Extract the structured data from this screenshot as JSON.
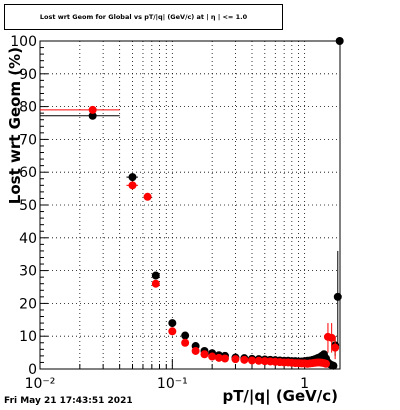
{
  "footer": {
    "timestamp": "Fri May 21 17:43:51 2021"
  },
  "chart_data": {
    "type": "scatter",
    "title": "Lost wrt Geom for Global vs pT/|q| (GeV/c) at |  η  | <= 1.0",
    "xlabel": "pT/|q| (GeV/c)",
    "ylabel": "Lost  wrt  Geom (%)",
    "xscale": "log",
    "xlim": [
      0.01,
      1.85
    ],
    "ylim": [
      0,
      100
    ],
    "x_ticks": [
      {
        "value": 0.01,
        "label": "10⁻²"
      },
      {
        "value": 0.1,
        "label": "10⁻¹"
      },
      {
        "value": 1,
        "label": "1"
      }
    ],
    "y_ticks": [
      0,
      10,
      20,
      30,
      40,
      50,
      60,
      70,
      80,
      90,
      100
    ],
    "grid": true,
    "series": [
      {
        "color": "#000000",
        "points": [
          {
            "x": 0.025,
            "y": 77.2,
            "xlo": 0.0,
            "xhi": 0.04
          },
          {
            "x": 0.05,
            "y": 58.5,
            "xlo": 0.045,
            "xhi": 0.055
          },
          {
            "x": 0.075,
            "y": 28.5
          },
          {
            "x": 0.1,
            "y": 14.0
          },
          {
            "x": 0.125,
            "y": 10.2
          },
          {
            "x": 0.15,
            "y": 7.0
          },
          {
            "x": 0.175,
            "y": 5.5
          },
          {
            "x": 0.2,
            "y": 4.8
          },
          {
            "x": 0.225,
            "y": 4.2
          },
          {
            "x": 0.25,
            "y": 4.0
          },
          {
            "x": 0.3,
            "y": 3.5
          },
          {
            "x": 0.35,
            "y": 3.3
          },
          {
            "x": 0.4,
            "y": 3.1
          },
          {
            "x": 0.45,
            "y": 3.0
          },
          {
            "x": 0.5,
            "y": 2.9
          },
          {
            "x": 0.55,
            "y": 2.8
          },
          {
            "x": 0.6,
            "y": 2.7
          },
          {
            "x": 0.65,
            "y": 2.6
          },
          {
            "x": 0.7,
            "y": 2.5
          },
          {
            "x": 0.75,
            "y": 2.5
          },
          {
            "x": 0.8,
            "y": 2.4
          },
          {
            "x": 0.85,
            "y": 2.4
          },
          {
            "x": 0.9,
            "y": 2.3
          },
          {
            "x": 0.95,
            "y": 2.3
          },
          {
            "x": 1.0,
            "y": 2.4
          },
          {
            "x": 1.05,
            "y": 2.5
          },
          {
            "x": 1.1,
            "y": 2.6
          },
          {
            "x": 1.15,
            "y": 2.8
          },
          {
            "x": 1.2,
            "y": 3.0
          },
          {
            "x": 1.25,
            "y": 3.3
          },
          {
            "x": 1.3,
            "y": 3.6
          },
          {
            "x": 1.35,
            "y": 4.0
          },
          {
            "x": 1.4,
            "y": 4.5
          },
          {
            "x": 1.45,
            "y": 3.2
          },
          {
            "x": 1.5,
            "y": 2.0
          },
          {
            "x": 1.55,
            "y": 1.5
          },
          {
            "x": 1.6,
            "y": 1.2
          },
          {
            "x": 1.65,
            "y": 1.0
          },
          {
            "x": 1.7,
            "y": 7.2,
            "ylo": 4.0,
            "yhi": 10.0
          },
          {
            "x": 1.78,
            "y": 22.0,
            "ylo": 8.0,
            "yhi": 36.0
          },
          {
            "x": 1.84,
            "y": 100.0
          }
        ]
      },
      {
        "color": "#ff0000",
        "points": [
          {
            "x": 0.025,
            "y": 79.0,
            "xlo": 0.0,
            "xhi": 0.04
          },
          {
            "x": 0.05,
            "y": 56.0,
            "xlo": 0.045,
            "xhi": 0.055
          },
          {
            "x": 0.065,
            "y": 52.5
          },
          {
            "x": 0.075,
            "y": 26.0
          },
          {
            "x": 0.1,
            "y": 11.5
          },
          {
            "x": 0.125,
            "y": 8.0
          },
          {
            "x": 0.15,
            "y": 5.5
          },
          {
            "x": 0.175,
            "y": 4.5
          },
          {
            "x": 0.2,
            "y": 3.8
          },
          {
            "x": 0.225,
            "y": 3.4
          },
          {
            "x": 0.25,
            "y": 3.2
          },
          {
            "x": 0.3,
            "y": 3.0
          },
          {
            "x": 0.35,
            "y": 2.8
          },
          {
            "x": 0.4,
            "y": 2.6
          },
          {
            "x": 0.45,
            "y": 2.5
          },
          {
            "x": 0.5,
            "y": 2.4
          },
          {
            "x": 0.55,
            "y": 2.3
          },
          {
            "x": 0.6,
            "y": 2.2
          },
          {
            "x": 0.65,
            "y": 2.1
          },
          {
            "x": 0.7,
            "y": 2.0
          },
          {
            "x": 0.75,
            "y": 2.0
          },
          {
            "x": 0.8,
            "y": 1.9
          },
          {
            "x": 0.85,
            "y": 1.8
          },
          {
            "x": 0.9,
            "y": 1.8
          },
          {
            "x": 0.95,
            "y": 1.7
          },
          {
            "x": 1.0,
            "y": 1.7
          },
          {
            "x": 1.05,
            "y": 1.6
          },
          {
            "x": 1.1,
            "y": 1.7
          },
          {
            "x": 1.15,
            "y": 1.8
          },
          {
            "x": 1.2,
            "y": 1.9
          },
          {
            "x": 1.25,
            "y": 2.0
          },
          {
            "x": 1.3,
            "y": 2.0
          },
          {
            "x": 1.35,
            "y": 1.9
          },
          {
            "x": 1.4,
            "y": 1.8
          },
          {
            "x": 1.45,
            "y": 1.6
          },
          {
            "x": 1.5,
            "y": 9.8,
            "ylo": 5.0,
            "yhi": 14.0
          },
          {
            "x": 1.6,
            "y": 9.5,
            "ylo": 5.0,
            "yhi": 14.0
          },
          {
            "x": 1.7,
            "y": 6.5,
            "ylo": 3.0,
            "yhi": 10.0
          }
        ]
      }
    ]
  }
}
